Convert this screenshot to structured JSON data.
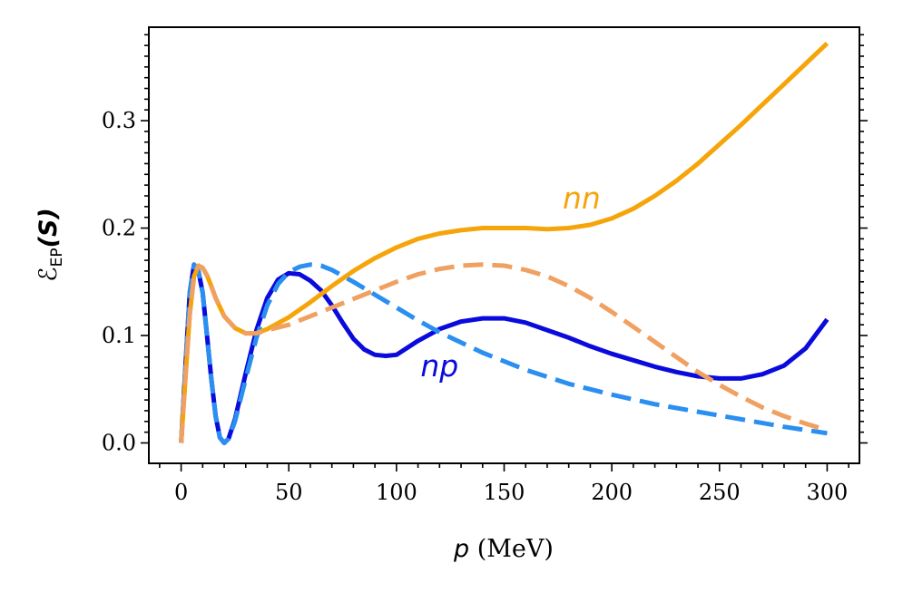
{
  "chart_data": {
    "type": "line",
    "title": "",
    "xlabel_var": "p",
    "xlabel_unit": " (MeV)",
    "ylabel_main": "ℰ",
    "ylabel_sub": "EP",
    "ylabel_arg": "(S)",
    "xlim": [
      -15,
      315
    ],
    "ylim": [
      -0.019,
      0.387
    ],
    "xticks": [
      0,
      50,
      100,
      150,
      200,
      250,
      300
    ],
    "xtick_labels": [
      "0",
      "50",
      "100",
      "150",
      "200",
      "250",
      "300"
    ],
    "yticks": [
      0.0,
      0.1,
      0.2,
      0.3
    ],
    "ytick_labels": [
      "0.0",
      "0.1",
      "0.2",
      "0.3"
    ],
    "grid": false,
    "series": [
      {
        "name": "np",
        "style": "solid",
        "color": "#0a0adc",
        "label": "np",
        "label_at": [
          120,
          0.062
        ],
        "points": [
          [
            0,
            0.0
          ],
          [
            2,
            0.07
          ],
          [
            4,
            0.14
          ],
          [
            6,
            0.166
          ],
          [
            8,
            0.16
          ],
          [
            10,
            0.14
          ],
          [
            12,
            0.1
          ],
          [
            14,
            0.06
          ],
          [
            16,
            0.025
          ],
          [
            18,
            0.005
          ],
          [
            20,
            0.0
          ],
          [
            22,
            0.004
          ],
          [
            25,
            0.022
          ],
          [
            30,
            0.065
          ],
          [
            35,
            0.105
          ],
          [
            40,
            0.135
          ],
          [
            45,
            0.152
          ],
          [
            50,
            0.158
          ],
          [
            55,
            0.157
          ],
          [
            60,
            0.151
          ],
          [
            65,
            0.142
          ],
          [
            70,
            0.128
          ],
          [
            75,
            0.112
          ],
          [
            80,
            0.097
          ],
          [
            85,
            0.087
          ],
          [
            90,
            0.082
          ],
          [
            95,
            0.081
          ],
          [
            100,
            0.082
          ],
          [
            110,
            0.095
          ],
          [
            120,
            0.106
          ],
          [
            130,
            0.113
          ],
          [
            140,
            0.116
          ],
          [
            150,
            0.116
          ],
          [
            160,
            0.112
          ],
          [
            170,
            0.105
          ],
          [
            180,
            0.098
          ],
          [
            190,
            0.09
          ],
          [
            200,
            0.083
          ],
          [
            210,
            0.077
          ],
          [
            220,
            0.071
          ],
          [
            230,
            0.066
          ],
          [
            240,
            0.062
          ],
          [
            250,
            0.06
          ],
          [
            260,
            0.06
          ],
          [
            270,
            0.064
          ],
          [
            280,
            0.072
          ],
          [
            290,
            0.088
          ],
          [
            300,
            0.115
          ]
        ]
      },
      {
        "name": "np-reference",
        "style": "dashed",
        "color": "#2a8ff0",
        "points": [
          [
            0,
            0.0
          ],
          [
            2,
            0.07
          ],
          [
            4,
            0.14
          ],
          [
            6,
            0.166
          ],
          [
            8,
            0.16
          ],
          [
            10,
            0.14
          ],
          [
            12,
            0.1
          ],
          [
            14,
            0.06
          ],
          [
            16,
            0.025
          ],
          [
            18,
            0.005
          ],
          [
            20,
            0.0
          ],
          [
            22,
            0.004
          ],
          [
            25,
            0.02
          ],
          [
            30,
            0.06
          ],
          [
            35,
            0.098
          ],
          [
            40,
            0.128
          ],
          [
            45,
            0.148
          ],
          [
            50,
            0.159
          ],
          [
            55,
            0.164
          ],
          [
            60,
            0.166
          ],
          [
            65,
            0.165
          ],
          [
            70,
            0.161
          ],
          [
            80,
            0.15
          ],
          [
            90,
            0.138
          ],
          [
            100,
            0.126
          ],
          [
            110,
            0.114
          ],
          [
            120,
            0.103
          ],
          [
            140,
            0.084
          ],
          [
            160,
            0.068
          ],
          [
            180,
            0.055
          ],
          [
            200,
            0.045
          ],
          [
            220,
            0.036
          ],
          [
            240,
            0.029
          ],
          [
            260,
            0.022
          ],
          [
            280,
            0.015
          ],
          [
            300,
            0.009
          ]
        ]
      },
      {
        "name": "nn",
        "style": "solid",
        "color": "#f5a50a",
        "label": "nn",
        "label_at": [
          186,
          0.218
        ],
        "points": [
          [
            0,
            0.0
          ],
          [
            2,
            0.06
          ],
          [
            4,
            0.12
          ],
          [
            6,
            0.155
          ],
          [
            8,
            0.165
          ],
          [
            10,
            0.163
          ],
          [
            12,
            0.156
          ],
          [
            14,
            0.146
          ],
          [
            16,
            0.135
          ],
          [
            20,
            0.118
          ],
          [
            25,
            0.107
          ],
          [
            30,
            0.102
          ],
          [
            35,
            0.102
          ],
          [
            40,
            0.106
          ],
          [
            50,
            0.117
          ],
          [
            60,
            0.131
          ],
          [
            70,
            0.146
          ],
          [
            80,
            0.16
          ],
          [
            90,
            0.172
          ],
          [
            100,
            0.182
          ],
          [
            110,
            0.19
          ],
          [
            120,
            0.195
          ],
          [
            130,
            0.198
          ],
          [
            140,
            0.2
          ],
          [
            150,
            0.2
          ],
          [
            160,
            0.2
          ],
          [
            170,
            0.199
          ],
          [
            180,
            0.2
          ],
          [
            190,
            0.203
          ],
          [
            200,
            0.209
          ],
          [
            210,
            0.218
          ],
          [
            220,
            0.23
          ],
          [
            230,
            0.244
          ],
          [
            240,
            0.26
          ],
          [
            250,
            0.278
          ],
          [
            260,
            0.296
          ],
          [
            270,
            0.315
          ],
          [
            280,
            0.334
          ],
          [
            290,
            0.353
          ],
          [
            300,
            0.372
          ]
        ]
      },
      {
        "name": "nn-reference",
        "style": "dashed",
        "color": "#f0a060",
        "points": [
          [
            0,
            0.0
          ],
          [
            2,
            0.06
          ],
          [
            4,
            0.12
          ],
          [
            6,
            0.155
          ],
          [
            8,
            0.165
          ],
          [
            10,
            0.163
          ],
          [
            12,
            0.156
          ],
          [
            14,
            0.146
          ],
          [
            16,
            0.135
          ],
          [
            20,
            0.118
          ],
          [
            25,
            0.107
          ],
          [
            30,
            0.102
          ],
          [
            35,
            0.102
          ],
          [
            40,
            0.105
          ],
          [
            50,
            0.11
          ],
          [
            60,
            0.118
          ],
          [
            70,
            0.126
          ],
          [
            80,
            0.134
          ],
          [
            90,
            0.142
          ],
          [
            100,
            0.15
          ],
          [
            110,
            0.157
          ],
          [
            120,
            0.162
          ],
          [
            130,
            0.165
          ],
          [
            140,
            0.166
          ],
          [
            150,
            0.165
          ],
          [
            160,
            0.161
          ],
          [
            170,
            0.155
          ],
          [
            180,
            0.146
          ],
          [
            190,
            0.135
          ],
          [
            200,
            0.122
          ],
          [
            210,
            0.108
          ],
          [
            220,
            0.094
          ],
          [
            230,
            0.08
          ],
          [
            240,
            0.066
          ],
          [
            250,
            0.054
          ],
          [
            260,
            0.043
          ],
          [
            270,
            0.033
          ],
          [
            280,
            0.025
          ],
          [
            290,
            0.018
          ],
          [
            300,
            0.012
          ]
        ]
      }
    ]
  }
}
